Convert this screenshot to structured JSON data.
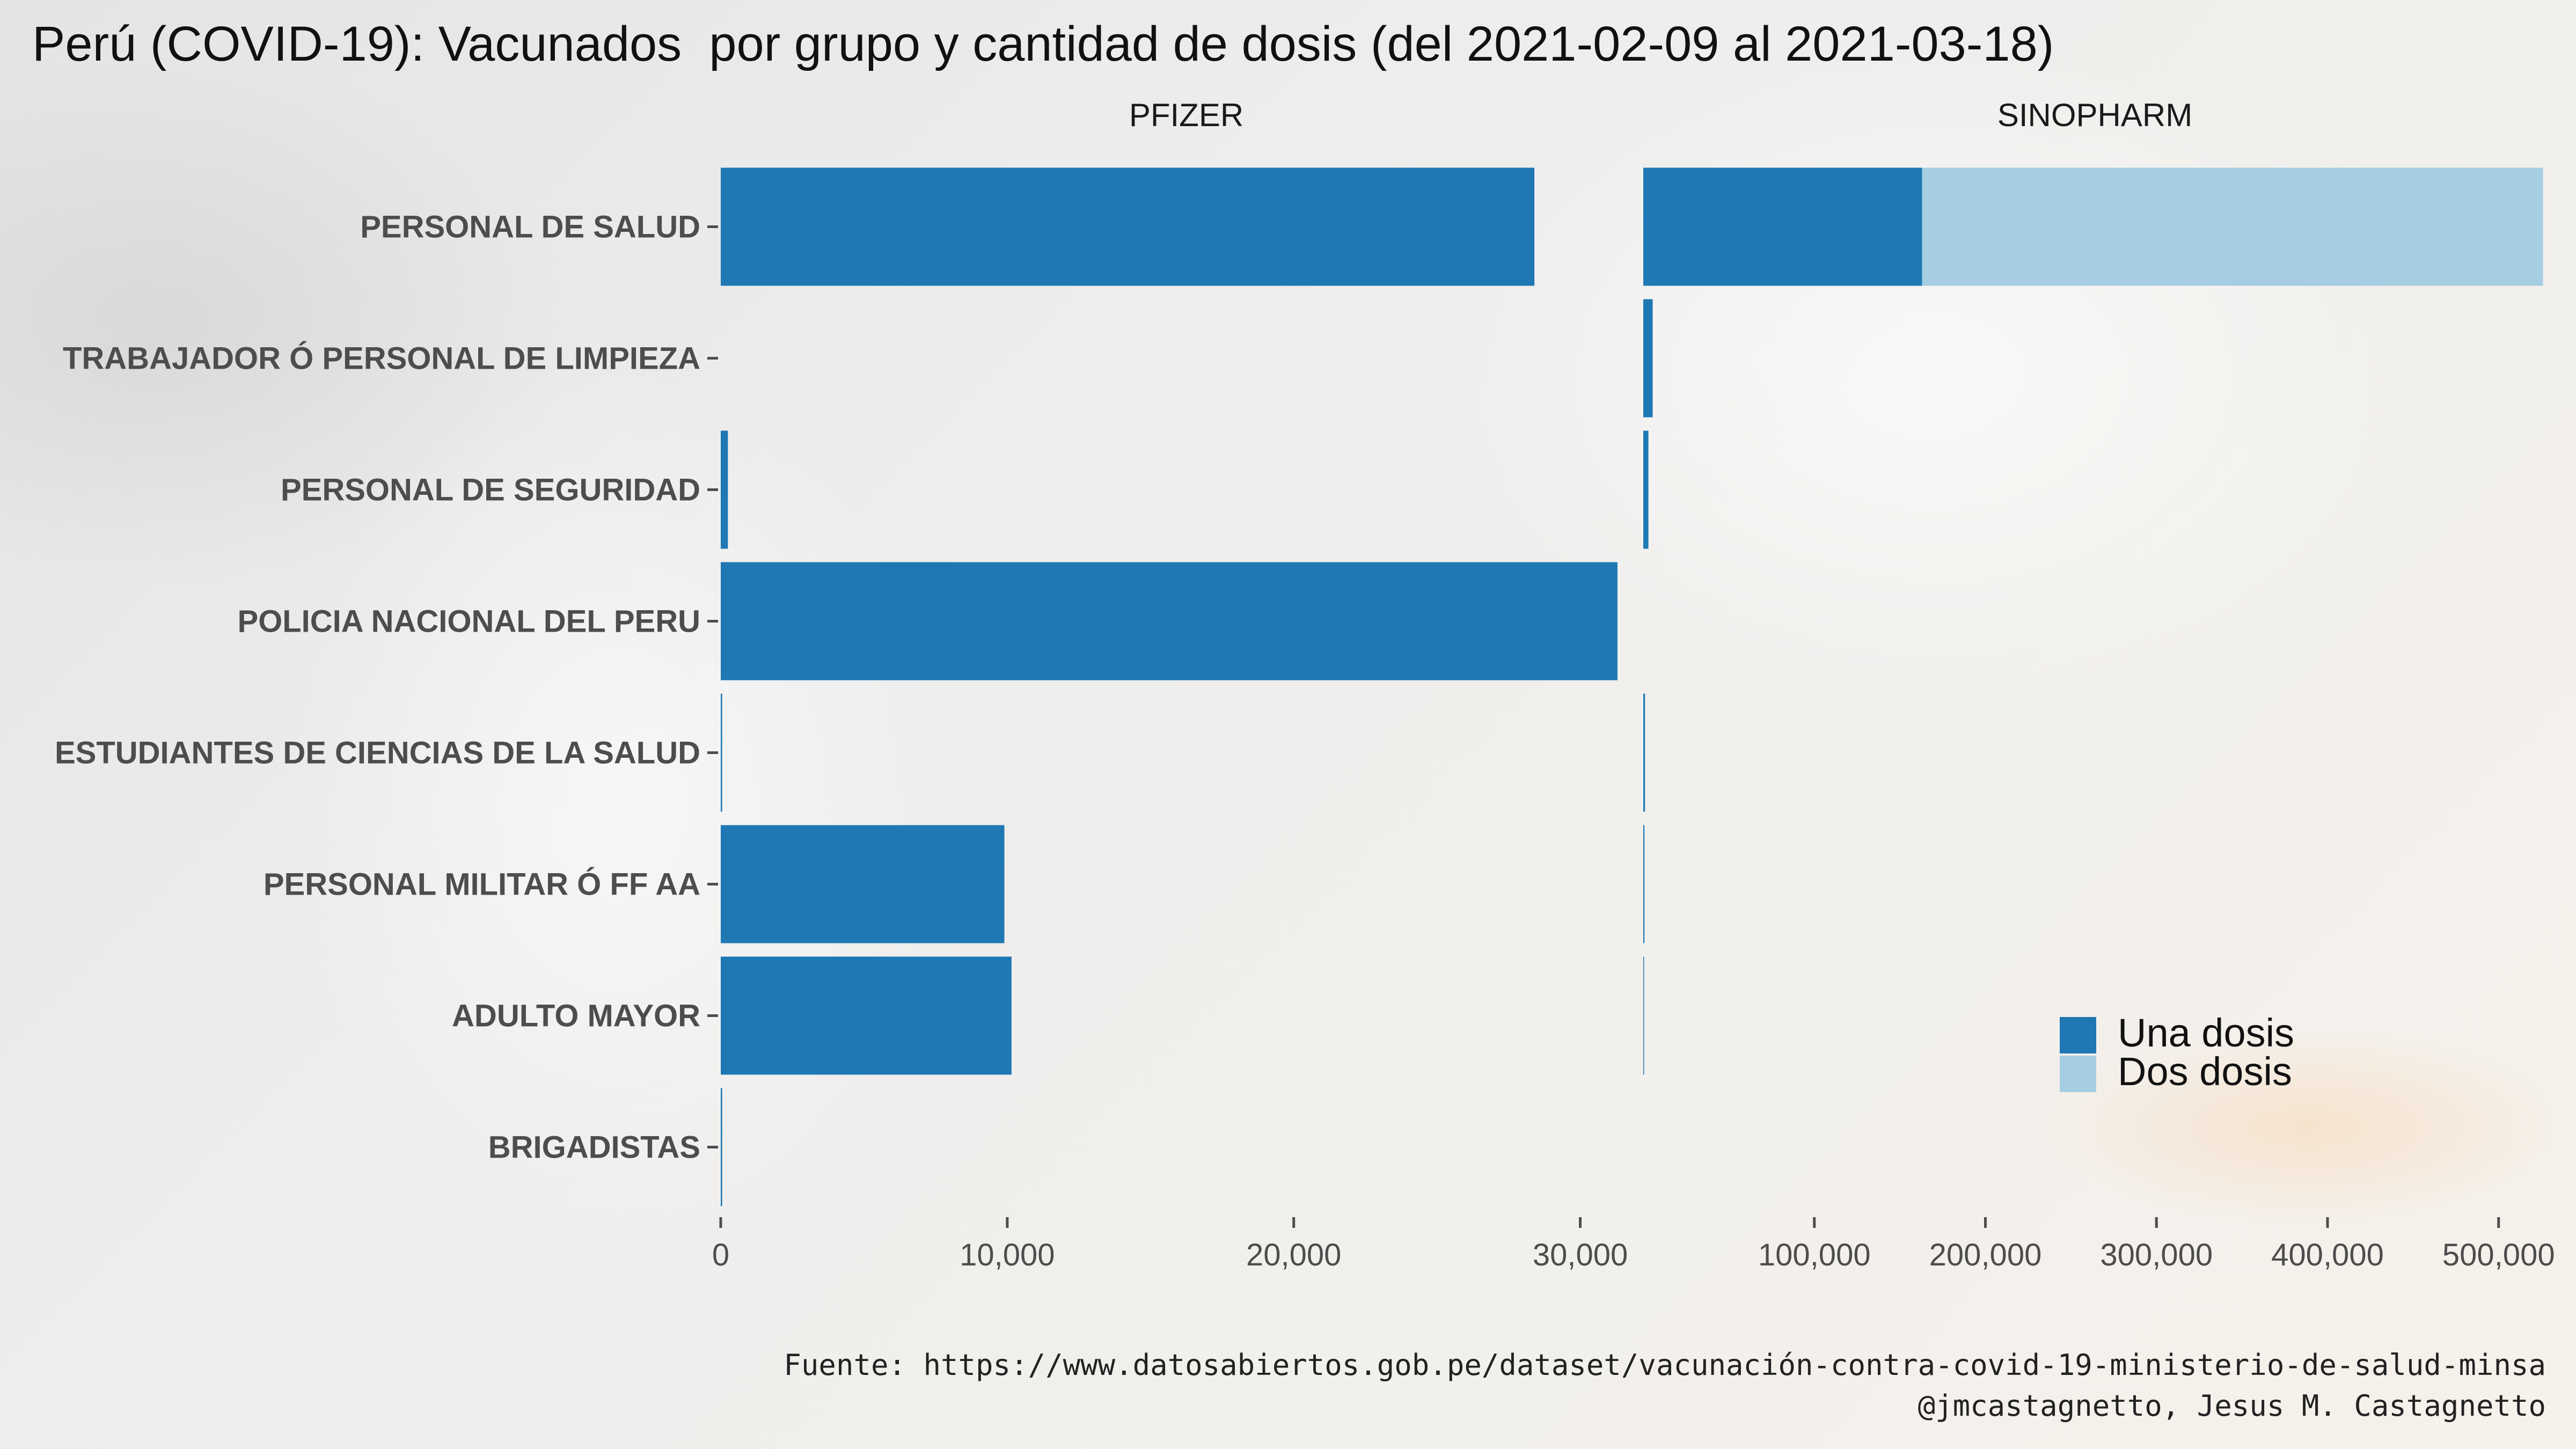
{
  "title": "Perú (COVID-19): Vacunados  por grupo y cantidad de dosis (del 2021-02-09 al 2021-03-18)",
  "caption": {
    "source": "Fuente: https://www.datosabiertos.gob.pe/dataset/vacunación-contra-covid-19-ministerio-de-salud-minsa",
    "author": "@jmcastagnetto, Jesus M. Castagnetto"
  },
  "legend_items": [
    "Una dosis",
    "Dos dosis"
  ],
  "chart_data": {
    "type": "bar",
    "stacked": true,
    "orientation": "horizontal",
    "categories": [
      "PERSONAL DE SALUD",
      "TRABAJADOR Ó PERSONAL DE LIMPIEZA",
      "PERSONAL DE SEGURIDAD",
      "POLICIA NACIONAL DEL PERU",
      "ESTUDIANTES DE CIENCIAS DE LA SALUD",
      "PERSONAL MILITAR Ó FF AA",
      "ADULTO MAYOR",
      "BRIGADISTAS"
    ],
    "legend_position": "bottom-right",
    "colors": {
      "Una dosis": "#1f78b4",
      "Dos dosis": "#a6cee3"
    },
    "facets": [
      {
        "name": "PFIZER",
        "xlim": [
          0,
          32500
        ],
        "ticks": [
          0,
          10000,
          20000,
          30000
        ],
        "tick_labels": [
          "0",
          "10,000",
          "20,000",
          "30,000"
        ],
        "series": [
          {
            "name": "Una dosis",
            "values": [
              28400,
              0,
              250,
              31300,
              50,
              9900,
              10150,
              50
            ]
          },
          {
            "name": "Dos dosis",
            "values": [
              0,
              0,
              0,
              0,
              0,
              0,
              0,
              0
            ]
          }
        ]
      },
      {
        "name": "SINOPHARM",
        "xlim": [
          0,
          528000
        ],
        "ticks": [
          100000,
          200000,
          300000,
          400000,
          500000
        ],
        "tick_labels": [
          "100,000",
          "200,000",
          "300,000",
          "400,000",
          "500,000"
        ],
        "series": [
          {
            "name": "Una dosis",
            "values": [
              163000,
              5500,
              3000,
              0,
              1000,
              700,
              400,
              0
            ]
          },
          {
            "name": "Dos dosis",
            "values": [
              363000,
              0,
              0,
              0,
              0,
              0,
              0,
              0
            ]
          }
        ]
      }
    ]
  }
}
